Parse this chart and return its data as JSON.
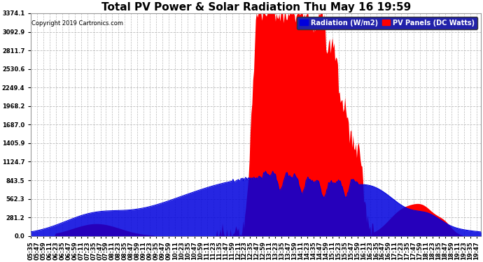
{
  "title": "Total PV Power & Solar Radiation Thu May 16 19:59",
  "copyright": "Copyright 2019 Cartronics.com",
  "legend_radiation": "Radiation (W/m2)",
  "legend_pv": "PV Panels (DC Watts)",
  "ymax": 3374.1,
  "yticks": [
    0.0,
    281.2,
    562.3,
    843.5,
    1124.7,
    1405.9,
    1687.0,
    1968.2,
    2249.4,
    2530.6,
    2811.7,
    3092.9,
    3374.1
  ],
  "background_color": "#ffffff",
  "plot_bg_color": "#ffffff",
  "grid_color": "#bbbbbb",
  "radiation_color": "#0000dd",
  "pv_color": "#ff0000",
  "title_fontsize": 11,
  "tick_fontsize": 6,
  "copyright_fontsize": 6
}
